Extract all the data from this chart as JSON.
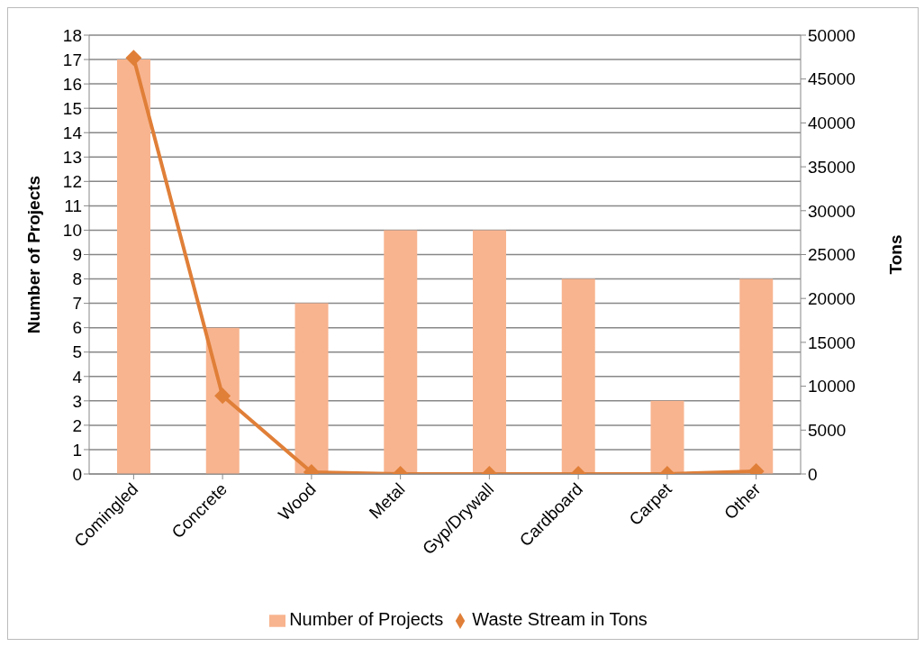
{
  "chart_data": {
    "type": "bar",
    "categories": [
      "Comingled",
      "Concrete",
      "Wood",
      "Metal",
      "Gyp/Drywall",
      "Cardboard",
      "Carpet",
      "Other"
    ],
    "series": [
      {
        "name": "Number of Projects",
        "color": "#f8b48f",
        "values": [
          17,
          6,
          7,
          10,
          10,
          8,
          3,
          8
        ]
      },
      {
        "name": "Waste Stream in Tons",
        "type": "line",
        "axis": "y2",
        "color": "#e07f38",
        "marker": "diamond",
        "values": [
          47400,
          8900,
          200,
          0,
          0,
          0,
          0,
          300
        ]
      }
    ],
    "ylabel": "Number of Projects",
    "y2label": "Tons",
    "ylim": [
      0,
      18
    ],
    "yticks": [
      0,
      1,
      2,
      3,
      4,
      5,
      6,
      7,
      8,
      9,
      10,
      11,
      12,
      13,
      14,
      15,
      16,
      17,
      18
    ],
    "y2lim": [
      0,
      50000
    ],
    "y2ticks": [
      0,
      5000,
      10000,
      15000,
      20000,
      25000,
      30000,
      35000,
      40000,
      45000,
      50000
    ],
    "grid": "y",
    "legend": "bottom"
  }
}
